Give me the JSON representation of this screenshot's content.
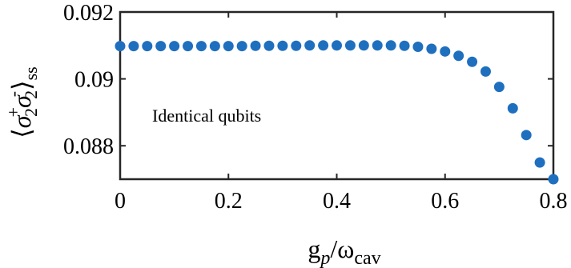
{
  "chart_data": {
    "type": "scatter",
    "annotation": "Identical qubits",
    "xlabel": {
      "main": "g",
      "sub1": "p",
      "slash": "/ω",
      "sub2": "cav"
    },
    "ylabel": {
      "langle": "⟨",
      "sigma1": "σ",
      "sup1": "+",
      "sub1": "2",
      "sigma2": "σ",
      "sup2": "-",
      "sub2": "2",
      "rangle": "⟩",
      "ss": "ss"
    },
    "xlim": [
      0,
      0.8
    ],
    "ylim": [
      0.087,
      0.092
    ],
    "xticks": [
      {
        "value": 0,
        "label": "0"
      },
      {
        "value": 0.2,
        "label": "0.2"
      },
      {
        "value": 0.4,
        "label": "0.4"
      },
      {
        "value": 0.6,
        "label": "0.6"
      },
      {
        "value": 0.8,
        "label": "0.8"
      }
    ],
    "yticks": [
      {
        "value": 0.088,
        "label": "0.088"
      },
      {
        "value": 0.09,
        "label": "0.09"
      },
      {
        "value": 0.092,
        "label": "0.092"
      }
    ],
    "grid": false,
    "marker_color": "#1f6fbf",
    "series": [
      {
        "x": [
          0.0,
          0.025,
          0.05,
          0.075,
          0.1,
          0.125,
          0.15,
          0.175,
          0.2,
          0.225,
          0.25,
          0.275,
          0.3,
          0.325,
          0.35,
          0.375,
          0.4,
          0.425,
          0.45,
          0.475,
          0.5,
          0.525,
          0.55,
          0.575,
          0.6,
          0.625,
          0.65,
          0.675,
          0.7,
          0.725,
          0.75,
          0.775,
          0.8
        ],
        "y": [
          0.09098,
          0.09098,
          0.09098,
          0.09098,
          0.09098,
          0.09098,
          0.09098,
          0.09098,
          0.09098,
          0.09098,
          0.09099,
          0.09099,
          0.09099,
          0.09099,
          0.091,
          0.091,
          0.091,
          0.091,
          0.091,
          0.091,
          0.091,
          0.09099,
          0.09096,
          0.0909,
          0.09082,
          0.09069,
          0.09051,
          0.09022,
          0.08976,
          0.08912,
          0.08832,
          0.0875,
          0.087
        ]
      }
    ]
  }
}
